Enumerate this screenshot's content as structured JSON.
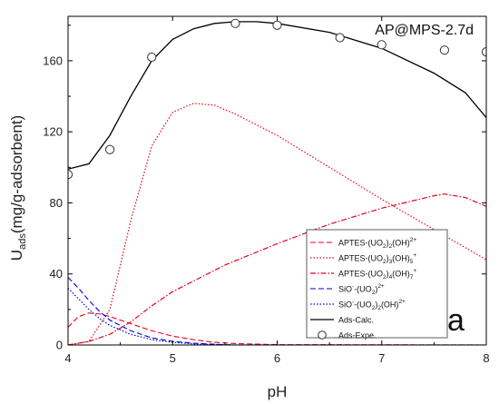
{
  "chart_data": {
    "type": "line",
    "title": "",
    "annotation": "AP@MPS-2.7d",
    "panel_label": "a",
    "xlabel": "pH",
    "ylabel": {
      "main": "U",
      "sub": "ads",
      "rest": "(mg/g-adsorbent)"
    },
    "xlim": [
      4,
      8
    ],
    "ylim": [
      0,
      185
    ],
    "xticks": [
      4,
      5,
      6,
      7,
      8
    ],
    "yticks": [
      0,
      40,
      80,
      120,
      160
    ],
    "grid": false,
    "legend_position": "bottom-right",
    "series": [
      {
        "key": "aptes1",
        "name": {
          "main": "APTES-(UO",
          "s1": "2",
          "m2": ")",
          "s2": "2",
          "m3": "(OH)",
          "s3": "",
          "sup": "2+"
        },
        "color": "#e8001c",
        "dash": "6,3",
        "width": 1.1,
        "x": [
          4.0,
          4.1,
          4.2,
          4.3,
          4.4,
          4.6,
          4.8,
          5.0,
          5.2,
          5.4,
          5.6,
          6.0,
          8.0
        ],
        "y": [
          10,
          16,
          18,
          17.5,
          16,
          12,
          8,
          5,
          3,
          1.5,
          0.8,
          0.2,
          0
        ]
      },
      {
        "key": "aptes2",
        "name": {
          "main": "APTES-(UO",
          "s1": "2",
          "m2": ")",
          "s2": "3",
          "m3": "(OH)",
          "s3": "5",
          "sup": "+"
        },
        "color": "#e8001c",
        "dash": "1.5,2",
        "width": 1.2,
        "x": [
          4.0,
          4.2,
          4.4,
          4.6,
          4.8,
          5.0,
          5.2,
          5.4,
          5.6,
          6.0,
          6.5,
          7.0,
          7.5,
          8.0
        ],
        "y": [
          0,
          2,
          20,
          70,
          112,
          131,
          136,
          135,
          130,
          118,
          100,
          82,
          65,
          48
        ]
      },
      {
        "key": "aptes3",
        "name": {
          "main": "APTES-(UO",
          "s1": "2",
          "m2": ")",
          "s2": "4",
          "m3": "(OH)",
          "s3": "7",
          "sup": "+"
        },
        "color": "#e8001c",
        "dash": "6,2,1.5,2",
        "width": 1.2,
        "x": [
          4.0,
          4.2,
          4.4,
          4.6,
          4.8,
          5.0,
          5.5,
          6.0,
          6.5,
          7.0,
          7.5,
          7.6,
          7.8,
          8.0
        ],
        "y": [
          0,
          2,
          6,
          13,
          22,
          30,
          45,
          57,
          68,
          77,
          84,
          85,
          83,
          78
        ]
      },
      {
        "key": "sio1",
        "name": {
          "main": "SiO",
          "supPre": "-",
          "m2": "-(UO",
          "s1": "2",
          "m3": ")",
          "sup": "2+"
        },
        "color": "#0000dd",
        "dash": "6,3",
        "width": 1.1,
        "x": [
          4.0,
          4.1,
          4.2,
          4.3,
          4.4,
          4.6,
          4.8,
          5.0,
          5.2,
          5.4,
          5.6,
          8.0
        ],
        "y": [
          38,
          32,
          25,
          19,
          14,
          8,
          4,
          2,
          1,
          0.4,
          0,
          0
        ]
      },
      {
        "key": "sio2",
        "name": {
          "main": "SiO",
          "supPre": "-",
          "m2": "-(UO",
          "s1": "2",
          "m3": ")",
          "s2": "2",
          "m4": "(OH)",
          "sup": "2+"
        },
        "color": "#0000dd",
        "dash": "1.5,2",
        "width": 1.2,
        "x": [
          4.0,
          4.1,
          4.2,
          4.3,
          4.4,
          4.6,
          4.8,
          5.0,
          5.2,
          5.4,
          5.6,
          8.0
        ],
        "y": [
          32,
          26,
          20,
          15,
          11,
          6,
          3,
          1.5,
          0.6,
          0.2,
          0,
          0
        ]
      },
      {
        "key": "calc",
        "name": {
          "main": "Ads-Calc."
        },
        "color": "#000000",
        "dash": "",
        "width": 1.3,
        "x": [
          4.0,
          4.2,
          4.4,
          4.6,
          4.8,
          5.0,
          5.2,
          5.4,
          5.6,
          5.8,
          6.0,
          6.5,
          7.0,
          7.5,
          7.8,
          8.0
        ],
        "y": [
          99,
          102,
          118,
          140,
          160,
          172,
          178,
          181,
          182,
          182,
          181,
          176,
          167,
          153,
          142,
          128
        ]
      }
    ],
    "scatter": {
      "key": "expe",
      "name": "Ads-Expe.",
      "x": [
        4.0,
        4.4,
        4.8,
        5.6,
        6.0,
        6.6,
        7.0,
        7.6,
        8.0
      ],
      "y": [
        96,
        110,
        162,
        181,
        180,
        173,
        169,
        166,
        165
      ]
    }
  }
}
